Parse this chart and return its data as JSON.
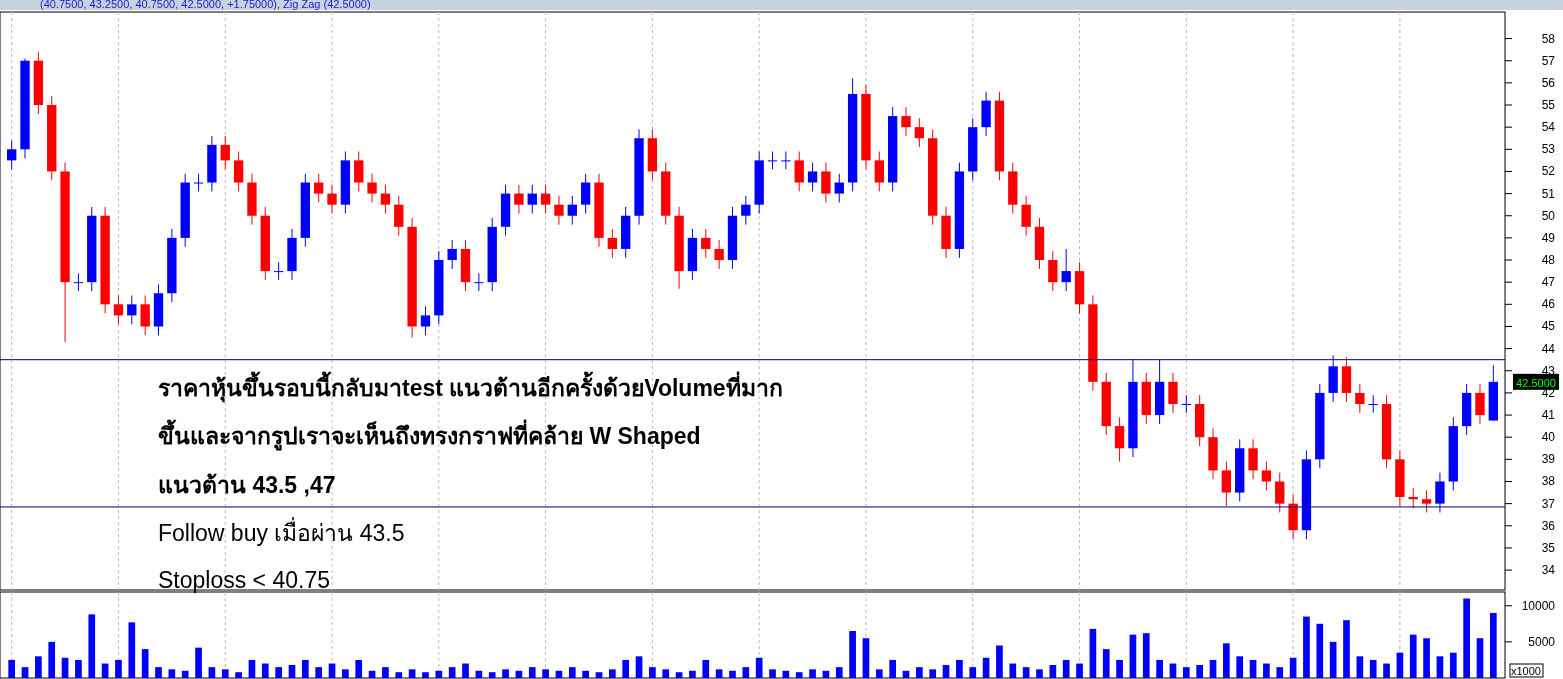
{
  "chart_data": [
    {
      "type": "candlestick",
      "title": "(40.7500, 43.2500, 40.7500, 42.5000, +1.75000), Zig Zag (42.5000)",
      "categories": [
        null,
        null,
        null,
        null,
        null,
        null,
        null,
        null,
        null,
        null,
        null,
        null,
        null,
        null,
        null,
        null,
        null,
        null,
        null,
        null,
        null,
        null,
        null,
        null,
        null,
        null,
        null,
        null,
        null,
        null,
        null,
        null,
        null,
        null,
        null,
        null,
        null,
        null,
        null,
        null,
        null,
        null,
        null,
        null,
        null,
        null,
        null,
        null,
        null,
        null,
        null,
        null,
        null,
        null,
        null,
        null,
        null,
        null,
        null,
        null,
        null,
        null,
        null,
        null,
        null,
        null,
        null,
        null,
        null,
        null,
        null,
        null,
        null,
        null,
        null,
        null,
        null,
        null,
        null,
        null,
        null,
        null,
        null,
        null,
        null,
        null,
        null,
        null,
        null,
        null,
        null,
        null,
        null,
        null,
        null,
        null,
        null,
        null,
        null,
        null,
        null,
        null,
        null,
        null,
        null,
        null,
        null,
        null,
        null,
        null,
        null,
        null
      ],
      "ohlc": [
        [
          52.5,
          53.4,
          52.1,
          53
        ],
        [
          53,
          57.1,
          52.6,
          57
        ],
        [
          57,
          57.4,
          54.6,
          55
        ],
        [
          55,
          55.4,
          51.6,
          52
        ],
        [
          52,
          52.4,
          44.3,
          47
        ],
        [
          47,
          47.4,
          46.6,
          47
        ],
        [
          47,
          50.4,
          46.6,
          50
        ],
        [
          50,
          50.4,
          45.6,
          46
        ],
        [
          46,
          46.4,
          45.1,
          45.5
        ],
        [
          45.5,
          46.4,
          45.1,
          46
        ],
        [
          46,
          46.4,
          44.6,
          45
        ],
        [
          45,
          46.9,
          44.6,
          46.5
        ],
        [
          46.5,
          49.4,
          46.1,
          49
        ],
        [
          49,
          51.9,
          48.6,
          51.5
        ],
        [
          51.5,
          51.9,
          51.1,
          51.5
        ],
        [
          51.5,
          53.6,
          51.1,
          53.2
        ],
        [
          53.2,
          53.6,
          52.1,
          52.5
        ],
        [
          52.5,
          52.9,
          51.1,
          51.5
        ],
        [
          51.5,
          51.9,
          49.6,
          50
        ],
        [
          50,
          50.4,
          47.1,
          47.5
        ],
        [
          47.5,
          47.9,
          47.1,
          47.5
        ],
        [
          47.5,
          49.4,
          47.1,
          49
        ],
        [
          49,
          51.9,
          48.6,
          51.5
        ],
        [
          51.5,
          51.9,
          50.6,
          51
        ],
        [
          51,
          51.4,
          50.1,
          50.5
        ],
        [
          50.5,
          52.9,
          50.1,
          52.5
        ],
        [
          52.5,
          52.9,
          51.1,
          51.5
        ],
        [
          51.5,
          51.9,
          50.6,
          51
        ],
        [
          51,
          51.4,
          50.1,
          50.5
        ],
        [
          50.5,
          50.9,
          49.1,
          49.5
        ],
        [
          49.5,
          49.9,
          44.5,
          45
        ],
        [
          45,
          45.9,
          44.6,
          45.5
        ],
        [
          45.5,
          48.4,
          45.1,
          48
        ],
        [
          48,
          48.9,
          47.6,
          48.5
        ],
        [
          48.5,
          48.9,
          46.6,
          47
        ],
        [
          47,
          47.4,
          46.6,
          47
        ],
        [
          47,
          49.9,
          46.6,
          49.5
        ],
        [
          49.5,
          51.4,
          49.1,
          51
        ],
        [
          51,
          51.4,
          50.1,
          50.5
        ],
        [
          50.5,
          51.4,
          50.1,
          51
        ],
        [
          51,
          51.4,
          50.1,
          50.5
        ],
        [
          50.5,
          50.9,
          49.6,
          50
        ],
        [
          50,
          50.9,
          49.6,
          50.5
        ],
        [
          50.5,
          51.9,
          50.1,
          51.5
        ],
        [
          51.5,
          51.9,
          48.6,
          49
        ],
        [
          49,
          49.4,
          48.1,
          48.5
        ],
        [
          48.5,
          50.4,
          48.1,
          50
        ],
        [
          50,
          53.9,
          49.6,
          53.5
        ],
        [
          53.5,
          53.9,
          51.6,
          52
        ],
        [
          52,
          52.4,
          49.6,
          50
        ],
        [
          50,
          50.4,
          46.7,
          47.5
        ],
        [
          47.5,
          49.4,
          47.1,
          49
        ],
        [
          49,
          49.4,
          48.1,
          48.5
        ],
        [
          48.5,
          48.9,
          47.6,
          48
        ],
        [
          48,
          50.4,
          47.6,
          50
        ],
        [
          50,
          50.9,
          49.6,
          50.5
        ],
        [
          50.5,
          52.9,
          50.1,
          52.5
        ],
        [
          52.5,
          52.9,
          52.1,
          52.5
        ],
        [
          52.5,
          52.9,
          52.1,
          52.5
        ],
        [
          52.5,
          52.9,
          51.1,
          51.5
        ],
        [
          51.5,
          52.4,
          51.1,
          52
        ],
        [
          52,
          52.4,
          50.6,
          51
        ],
        [
          51,
          51.9,
          50.6,
          51.5
        ],
        [
          51.5,
          56.2,
          51.1,
          55.5
        ],
        [
          55.5,
          55.9,
          52.1,
          52.5
        ],
        [
          52.5,
          52.9,
          51.1,
          51.5
        ],
        [
          51.5,
          54.9,
          51.1,
          54.5
        ],
        [
          54.5,
          54.9,
          53.6,
          54
        ],
        [
          54,
          54.4,
          53.1,
          53.5
        ],
        [
          53.5,
          53.9,
          49.6,
          50
        ],
        [
          50,
          50.4,
          48.1,
          48.5
        ],
        [
          48.5,
          52.4,
          48.1,
          52
        ],
        [
          52,
          54.4,
          51.6,
          54
        ],
        [
          54,
          55.6,
          53.6,
          55.2
        ],
        [
          55.2,
          55.6,
          51.6,
          52
        ],
        [
          52,
          52.4,
          50.1,
          50.5
        ],
        [
          50.5,
          50.9,
          49.1,
          49.5
        ],
        [
          49.5,
          49.9,
          47.6,
          48
        ],
        [
          48,
          48.4,
          46.6,
          47
        ],
        [
          47,
          48.5,
          46.6,
          47.5
        ],
        [
          47.5,
          47.9,
          45.6,
          46
        ],
        [
          46,
          46.4,
          42.1,
          42.5
        ],
        [
          42.5,
          42.9,
          40.1,
          40.5
        ],
        [
          40.5,
          40.9,
          38.9,
          39.5
        ],
        [
          39.5,
          43.5,
          39.1,
          42.5
        ],
        [
          42.5,
          42.9,
          40.6,
          41
        ],
        [
          41,
          43.5,
          40.6,
          42.5
        ],
        [
          42.5,
          42.9,
          41.1,
          41.5
        ],
        [
          41.5,
          41.9,
          41.1,
          41.5
        ],
        [
          41.5,
          41.9,
          39.6,
          40
        ],
        [
          40,
          40.4,
          38.1,
          38.5
        ],
        [
          38.5,
          38.9,
          36.9,
          37.5
        ],
        [
          37.5,
          39.9,
          37.1,
          39.5
        ],
        [
          39.5,
          39.9,
          38.1,
          38.5
        ],
        [
          38.5,
          38.9,
          37.6,
          38
        ],
        [
          38,
          38.4,
          36.6,
          37
        ],
        [
          37,
          37.4,
          35.4,
          35.8
        ],
        [
          35.8,
          39.4,
          35.4,
          39
        ],
        [
          39,
          42.4,
          38.6,
          42
        ],
        [
          42,
          43.7,
          41.6,
          43.2
        ],
        [
          43.2,
          43.6,
          41.6,
          42
        ],
        [
          42,
          42.4,
          41.1,
          41.5
        ],
        [
          41.5,
          41.9,
          41.1,
          41.5
        ],
        [
          41.5,
          41.9,
          38.6,
          39
        ],
        [
          39,
          39.4,
          36.9,
          37.3
        ],
        [
          37.3,
          37.7,
          36.8,
          37.2
        ],
        [
          37.2,
          37.6,
          36.6,
          37
        ],
        [
          37,
          38.4,
          36.6,
          38
        ],
        [
          38,
          40.9,
          37.6,
          40.5
        ],
        [
          40.5,
          42.4,
          40.1,
          42
        ],
        [
          42,
          42.4,
          40.6,
          41
        ],
        [
          40.75,
          43.25,
          40.75,
          42.5
        ]
      ],
      "colors": [
        "#0000ff",
        "#0000ff",
        "#ff0000",
        "#ff0000",
        "#ff0000",
        "#0000ff",
        "#0000ff",
        "#ff0000",
        "#ff0000",
        "#0000ff",
        "#ff0000",
        "#0000ff",
        "#0000ff",
        "#0000ff",
        "#0000ff",
        "#0000ff",
        "#ff0000",
        "#ff0000",
        "#ff0000",
        "#ff0000",
        "#0000ff",
        "#0000ff",
        "#0000ff",
        "#ff0000",
        "#ff0000",
        "#0000ff",
        "#ff0000",
        "#ff0000",
        "#ff0000",
        "#ff0000",
        "#ff0000",
        "#0000ff",
        "#0000ff",
        "#0000ff",
        "#ff0000",
        "#0000ff",
        "#0000ff",
        "#0000ff",
        "#ff0000",
        "#0000ff",
        "#ff0000",
        "#ff0000",
        "#0000ff",
        "#0000ff",
        "#ff0000",
        "#ff0000",
        "#0000ff",
        "#0000ff",
        "#ff0000",
        "#ff0000",
        "#ff0000",
        "#0000ff",
        "#ff0000",
        "#ff0000",
        "#0000ff",
        "#0000ff",
        "#0000ff",
        "#0000ff",
        "#0000ff",
        "#ff0000",
        "#0000ff",
        "#ff0000",
        "#0000ff",
        "#0000ff",
        "#ff0000",
        "#ff0000",
        "#0000ff",
        "#ff0000",
        "#ff0000",
        "#ff0000",
        "#ff0000",
        "#0000ff",
        "#0000ff",
        "#0000ff",
        "#ff0000",
        "#ff0000",
        "#ff0000",
        "#ff0000",
        "#ff0000",
        "#0000ff",
        "#ff0000",
        "#ff0000",
        "#ff0000",
        "#ff0000",
        "#0000ff",
        "#ff0000",
        "#0000ff",
        "#ff0000",
        "#0000ff",
        "#ff0000",
        "#ff0000",
        "#ff0000",
        "#0000ff",
        "#ff0000",
        "#ff0000",
        "#ff0000",
        "#ff0000",
        "#0000ff",
        "#0000ff",
        "#0000ff",
        "#ff0000",
        "#ff0000",
        "#0000ff",
        "#ff0000",
        "#ff0000",
        "#ff0000",
        "#ff0000",
        "#0000ff",
        "#0000ff",
        "#0000ff",
        "#ff0000",
        "#0000ff"
      ],
      "ylim": [
        33.1,
        59.2
      ],
      "yticks": [
        34,
        35,
        36,
        37,
        38,
        39,
        40,
        41,
        42,
        43,
        44,
        45,
        46,
        47,
        48,
        49,
        50,
        51,
        52,
        53,
        54,
        55,
        56,
        57,
        58
      ],
      "grid": "x",
      "ref_lines": [
        {
          "axis": "y",
          "value": 43.5,
          "color": "#000080"
        },
        {
          "axis": "y",
          "value": 36.85,
          "color": "#000080"
        }
      ],
      "annotations": [
        "ราคาหุ้นขึ้นรอบนี้กลับมาtest แนวต้านอีกครั้งด้วยVolumeที่มาก",
        "ขึ้นและจากรูปเราจะเห็นถึงทรงกราฟที่คล้าย W Shaped",
        "แนวต้าน 43.5 ,47",
        "Follow buy เมื่อผ่าน 43.5",
        "Stoploss < 40.75",
        "42.5000"
      ]
    },
    {
      "type": "bar",
      "ylabel": "x1000",
      "categories": [
        null,
        null,
        null,
        null,
        null,
        null,
        null,
        null,
        null,
        null,
        null,
        null,
        null,
        null,
        null,
        null,
        null,
        null,
        null,
        null,
        null,
        null,
        null,
        null,
        null,
        null,
        null,
        null,
        null,
        null,
        null,
        null,
        null,
        null,
        null,
        null,
        null,
        null,
        null,
        null,
        null,
        null,
        null,
        null,
        null,
        null,
        null,
        null,
        null,
        null,
        null,
        null,
        null,
        null,
        null,
        null,
        null,
        null,
        null,
        null,
        null,
        null,
        null,
        null,
        null,
        null,
        null,
        null,
        null,
        null,
        null,
        null,
        null,
        null,
        null,
        null,
        null,
        null,
        null,
        null,
        null,
        null,
        null,
        null,
        null,
        null,
        null,
        null,
        null,
        null,
        null,
        null,
        null,
        null,
        null,
        null,
        null,
        null,
        null,
        null,
        null,
        null,
        null,
        null,
        null,
        null,
        null,
        null,
        null,
        null,
        null,
        null
      ],
      "values": [
        2500,
        1500,
        3000,
        5000,
        2800,
        2500,
        8800,
        2000,
        2500,
        7700,
        4000,
        1500,
        1200,
        1000,
        4200,
        1500,
        1200,
        800,
        2500,
        2000,
        1500,
        1800,
        2500,
        1500,
        2000,
        1200,
        2500,
        1000,
        1500,
        800,
        1200,
        800,
        1000,
        1500,
        2000,
        1000,
        800,
        1200,
        1000,
        1500,
        1200,
        1000,
        1500,
        1000,
        800,
        1200,
        2500,
        3000,
        1500,
        1200,
        800,
        1000,
        2500,
        1200,
        1000,
        1500,
        2800,
        1200,
        1000,
        800,
        1200,
        1000,
        1500,
        6500,
        5500,
        1200,
        2500,
        1000,
        1500,
        1200,
        1800,
        2500,
        1500,
        2800,
        4500,
        2000,
        1500,
        1200,
        1800,
        2500,
        2000,
        6800,
        4000,
        2500,
        6000,
        6200,
        2500,
        2000,
        1500,
        1800,
        2500,
        4800,
        3000,
        2500,
        2000,
        1500,
        2800,
        8500,
        7500,
        5000,
        8000,
        3000,
        2500,
        2000,
        3500,
        6000,
        5500,
        3000,
        3500,
        11000,
        5500,
        9000
      ],
      "color": "#0000ff",
      "ylim": [
        0,
        11900
      ],
      "yticks": [
        5000,
        10000
      ],
      "grid": "x"
    }
  ]
}
